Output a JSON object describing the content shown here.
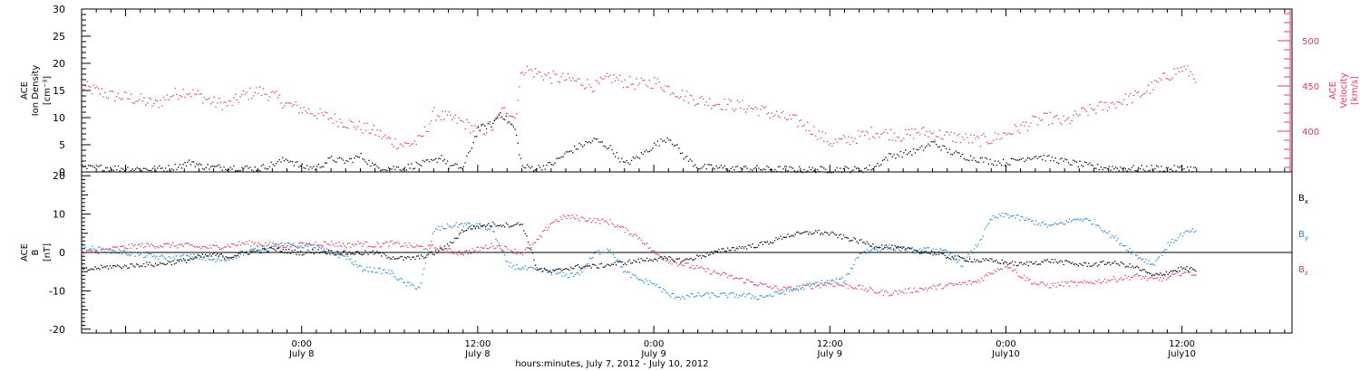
{
  "figure": {
    "xlabel": "hours:minutes, July  7, 2012 - July 10, 2012",
    "x_ticks": [
      {
        "hour": 12,
        "l1": "0:00",
        "l2": "July 8"
      },
      {
        "hour": 24,
        "l1": "12:00",
        "l2": "July 8"
      },
      {
        "hour": 36,
        "l1": "0:00",
        "l2": "July 9"
      },
      {
        "hour": 48,
        "l1": "12:00",
        "l2": "July 9"
      },
      {
        "hour": 60,
        "l1": "0:00",
        "l2": "July10"
      },
      {
        "hour": 72,
        "l1": "12:00",
        "l2": "July10"
      }
    ],
    "x_range_hours": [
      -3,
      79.5
    ],
    "colors": {
      "black": "#000000",
      "pink": "#e8375e",
      "blue": "#1e88e5"
    }
  },
  "chart_data": [
    {
      "type": "scatter",
      "title": "",
      "left_axis": {
        "label": [
          "ACE",
          "Ion Density",
          "[cm⁻³]"
        ],
        "ylim": [
          0,
          30
        ],
        "ticks": [
          0,
          5,
          10,
          15,
          20,
          25,
          30
        ]
      },
      "right_axis": {
        "label": [
          "ACE",
          "Velocity",
          "[km/s]"
        ],
        "ylim": [
          355,
          535
        ],
        "ticks": [
          400,
          450,
          500
        ]
      },
      "series": [
        {
          "name": "",
          "axis": "left",
          "color": "#000000",
          "x_hours": [
            -3,
            -1.5,
            0,
            1.5,
            3,
            4,
            4.5,
            5,
            6,
            7,
            8,
            9,
            10,
            11,
            12,
            13,
            14,
            15,
            16,
            17,
            18,
            19,
            20,
            21,
            21.5,
            22,
            23,
            24,
            25,
            25.5,
            26,
            26.5,
            27,
            28,
            29,
            30,
            31,
            32,
            33,
            34,
            35,
            36,
            37,
            38,
            39,
            40,
            41,
            42,
            43,
            44,
            45,
            46,
            47,
            48,
            49,
            50,
            51,
            52,
            53,
            54,
            55,
            56,
            57,
            58,
            59,
            60,
            61,
            62,
            63,
            64,
            65,
            66,
            67,
            68,
            69,
            70,
            71,
            72,
            73
          ],
          "values": [
            0.8,
            0.9,
            0.7,
            0.6,
            0.8,
            1.5,
            2.0,
            1.2,
            0.9,
            1.0,
            0.8,
            0.7,
            1.5,
            2.5,
            1.0,
            0.9,
            2.5,
            2.0,
            3.0,
            1.0,
            0.8,
            0.9,
            1.5,
            2.0,
            3.0,
            1.2,
            0.9,
            8.0,
            9.0,
            11.0,
            9.5,
            8.0,
            1.0,
            0.8,
            1.5,
            3.5,
            5.0,
            6.0,
            4.5,
            1.5,
            3.0,
            5.0,
            6.5,
            3.0,
            1.0,
            0.9,
            0.8,
            0.7,
            0.7,
            0.6,
            0.6,
            0.5,
            0.5,
            0.5,
            0.6,
            0.5,
            1.0,
            3.0,
            3.5,
            4.0,
            5.5,
            4.0,
            3.0,
            2.5,
            2.0,
            1.8,
            2.5,
            3.0,
            2.5,
            2.0,
            1.5,
            1.0,
            0.9,
            0.8,
            0.7,
            0.8,
            0.7,
            0.7,
            0.7
          ]
        },
        {
          "name": "",
          "axis": "right",
          "color": "#e8375e",
          "x_hours": [
            -3,
            -2,
            -1,
            0,
            1,
            2,
            3,
            4,
            5,
            6,
            7,
            8,
            9,
            10,
            11,
            12,
            13,
            14,
            15,
            16,
            17,
            18,
            19,
            20,
            21,
            22,
            23,
            24,
            25,
            25.5,
            26,
            26.5,
            27,
            28,
            29,
            30,
            31,
            32,
            33,
            34,
            35,
            36,
            37,
            38,
            39,
            40,
            41,
            42,
            43,
            44,
            45,
            46,
            47,
            48,
            49,
            50,
            51,
            52,
            53,
            54,
            55,
            56,
            57,
            58,
            59,
            60,
            61,
            62,
            63,
            64,
            65,
            66,
            67,
            68,
            69,
            70,
            71,
            72,
            73
          ],
          "values": [
            450,
            445,
            440,
            438,
            435,
            430,
            440,
            445,
            440,
            432,
            430,
            440,
            445,
            440,
            430,
            425,
            420,
            415,
            410,
            405,
            400,
            390,
            385,
            390,
            420,
            415,
            410,
            400,
            405,
            420,
            425,
            415,
            470,
            465,
            460,
            458,
            455,
            450,
            460,
            455,
            452,
            455,
            448,
            440,
            435,
            432,
            430,
            428,
            425,
            420,
            415,
            410,
            400,
            388,
            390,
            395,
            400,
            398,
            395,
            400,
            398,
            395,
            393,
            390,
            392,
            398,
            405,
            412,
            415,
            410,
            420,
            425,
            430,
            435,
            440,
            450,
            462,
            470,
            460
          ]
        }
      ]
    },
    {
      "type": "scatter",
      "title": "",
      "left_axis": {
        "label": [
          "ACE",
          "B",
          "[nT]"
        ],
        "ylim": [
          -21,
          21
        ],
        "ticks": [
          -20,
          -10,
          0,
          10,
          20
        ]
      },
      "zero_line": true,
      "series": [
        {
          "name": "Bx",
          "color": "#000000",
          "x_hours": [
            -3,
            -2,
            -1,
            0,
            1,
            2,
            3,
            4,
            5,
            6,
            7,
            8,
            9,
            10,
            11,
            12,
            13,
            14,
            15,
            16,
            17,
            18,
            19,
            20,
            21,
            22,
            23,
            24,
            25,
            26,
            27,
            28,
            29,
            30,
            31,
            32,
            33,
            34,
            35,
            36,
            37,
            38,
            39,
            40,
            41,
            42,
            43,
            44,
            45,
            46,
            47,
            48,
            49,
            50,
            51,
            52,
            53,
            54,
            55,
            56,
            57,
            58,
            59,
            60,
            61,
            62,
            63,
            64,
            65,
            66,
            67,
            68,
            69,
            70,
            71,
            72,
            73
          ],
          "values": [
            -4.5,
            -4,
            -3.5,
            -3.5,
            -3,
            -3,
            -2.5,
            -2,
            -1,
            -0.5,
            -1,
            0,
            0.5,
            1,
            0.5,
            0,
            0.5,
            0.2,
            0,
            0,
            0,
            -1,
            -1.5,
            -1.2,
            0,
            2,
            6,
            7,
            7.5,
            7.3,
            7.5,
            -4,
            -5,
            -4,
            -3.5,
            -3.5,
            -3,
            -2.5,
            -2,
            -1.5,
            -1.5,
            -2,
            -1,
            0,
            1,
            1.5,
            2,
            3,
            4.5,
            5,
            5.5,
            5,
            4,
            3,
            2,
            1.5,
            1,
            0.5,
            0,
            -1,
            -1.5,
            -2,
            -2,
            -2.5,
            -3,
            -2.5,
            -2,
            -2.5,
            -3,
            -3,
            -2.5,
            -3,
            -4,
            -6,
            -5,
            -4,
            -4.5
          ]
        },
        {
          "name": "By",
          "color": "#1e88e5",
          "x_hours": [
            -3,
            -2,
            -1,
            0,
            1,
            2,
            3,
            4,
            5,
            6,
            7,
            8,
            9,
            10,
            11,
            12,
            13,
            14,
            15,
            16,
            17,
            18,
            19,
            20,
            21,
            22,
            23,
            24,
            25,
            26,
            27,
            28,
            29,
            30,
            31,
            32,
            33,
            34,
            35,
            36,
            37,
            38,
            39,
            40,
            41,
            42,
            43,
            44,
            45,
            46,
            47,
            48,
            49,
            50,
            51,
            52,
            53,
            54,
            55,
            56,
            57,
            58,
            59,
            60,
            61,
            62,
            63,
            64,
            65,
            66,
            67,
            68,
            69,
            70,
            71,
            72,
            73
          ],
          "values": [
            1.5,
            1,
            0.5,
            0,
            -0.5,
            -1,
            -1.5,
            -1,
            -1,
            -2,
            -1.5,
            0,
            1,
            2,
            2,
            2,
            1.5,
            0,
            -1,
            -4,
            -4.5,
            -5,
            -8,
            -9,
            6,
            7,
            7.5,
            7,
            6,
            -3,
            -4,
            -4.5,
            -5,
            -6,
            -5,
            0,
            1,
            -5,
            -7,
            -8,
            -11,
            -11.5,
            -11,
            -11,
            -11,
            -11,
            -11.5,
            -11,
            -10,
            -9,
            -8,
            -7.5,
            -7,
            0,
            1,
            1.5,
            1,
            0.5,
            1,
            0,
            -3,
            2,
            9,
            10,
            9,
            8,
            7,
            8,
            9,
            8,
            5,
            2,
            -1,
            -3,
            2,
            5,
            6
          ]
        },
        {
          "name": "Bz",
          "color": "#e8375e",
          "x_hours": [
            -3,
            -2,
            -1,
            0,
            1,
            2,
            3,
            4,
            5,
            6,
            7,
            8,
            9,
            10,
            11,
            12,
            13,
            14,
            15,
            16,
            17,
            18,
            19,
            20,
            21,
            22,
            23,
            24,
            25,
            26,
            27,
            28,
            29,
            30,
            31,
            32,
            33,
            34,
            35,
            36,
            37,
            38,
            39,
            40,
            41,
            42,
            43,
            44,
            45,
            46,
            47,
            48,
            49,
            50,
            51,
            52,
            53,
            54,
            55,
            56,
            57,
            58,
            59,
            60,
            61,
            62,
            63,
            64,
            65,
            66,
            67,
            68,
            69,
            70,
            71,
            72,
            73
          ],
          "values": [
            0,
            0.5,
            1,
            1.5,
            2,
            2,
            2,
            2,
            1.5,
            1.5,
            2,
            2.5,
            2.5,
            2,
            2,
            2,
            2.5,
            2.5,
            2,
            2.5,
            2,
            2.5,
            2,
            1.5,
            1.5,
            0.5,
            0,
            1,
            2,
            1,
            0,
            3,
            8,
            9.5,
            9,
            8.5,
            8,
            6,
            4,
            0,
            -2,
            -3,
            -4,
            -5,
            -6,
            -7,
            -8,
            -9,
            -9.5,
            -9,
            -8.5,
            -8,
            -8.5,
            -9,
            -10,
            -10.5,
            -10,
            -9.5,
            -9,
            -8.5,
            -8,
            -7.5,
            -5,
            -3,
            -6,
            -8,
            -8.5,
            -8,
            -8,
            -7.5,
            -7,
            -6.5,
            -6,
            -7,
            -6.5,
            -5,
            -5.5
          ]
        }
      ]
    }
  ]
}
